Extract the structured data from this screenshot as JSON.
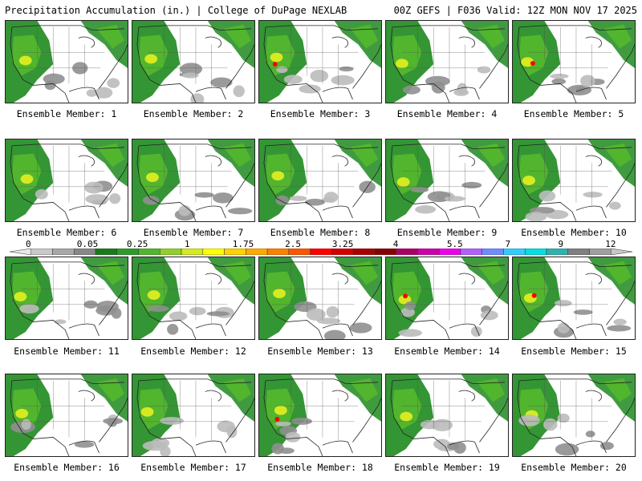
{
  "header": {
    "left": "Precipitation Accumulation (in.) | College of DuPage NEXLAB",
    "right": "00Z GEFS | F036 Valid: 12Z MON NOV 17 2025"
  },
  "colorbar": {
    "labels": [
      "0",
      "0.05",
      "0.25",
      "1",
      "1.75",
      "2.5",
      "3.25",
      "4",
      "5.5",
      "7",
      "9",
      "12"
    ],
    "colors": [
      "#e8e8e8",
      "#c8c8c8",
      "#a8a8a8",
      "#888888",
      "#1b7a1b",
      "#2e9a2e",
      "#52b52e",
      "#8fd12a",
      "#d6ea22",
      "#ffff00",
      "#ffd200",
      "#ffaa00",
      "#ff8000",
      "#ff5500",
      "#ff0000",
      "#d40000",
      "#a80000",
      "#880000",
      "#aa0066",
      "#cc00aa",
      "#ee00ee",
      "#b060ff",
      "#6f8cff",
      "#33ccff",
      "#00e0e0",
      "#30b0b0",
      "#808080",
      "#a0a0a0",
      "#c8c8c8"
    ]
  },
  "members": [
    {
      "label": "Ensemble Member: 1"
    },
    {
      "label": "Ensemble Member: 2"
    },
    {
      "label": "Ensemble Member: 3"
    },
    {
      "label": "Ensemble Member: 4"
    },
    {
      "label": "Ensemble Member: 5"
    },
    {
      "label": "Ensemble Member: 6"
    },
    {
      "label": "Ensemble Member: 7"
    },
    {
      "label": "Ensemble Member: 8"
    },
    {
      "label": "Ensemble Member: 9"
    },
    {
      "label": "Ensemble Member: 10"
    },
    {
      "label": "Ensemble Member: 11"
    },
    {
      "label": "Ensemble Member: 12"
    },
    {
      "label": "Ensemble Member: 13"
    },
    {
      "label": "Ensemble Member: 14"
    },
    {
      "label": "Ensemble Member: 15"
    },
    {
      "label": "Ensemble Member: 16"
    },
    {
      "label": "Ensemble Member: 17"
    },
    {
      "label": "Ensemble Member: 18"
    },
    {
      "label": "Ensemble Member: 19"
    },
    {
      "label": "Ensemble Member: 20"
    }
  ]
}
